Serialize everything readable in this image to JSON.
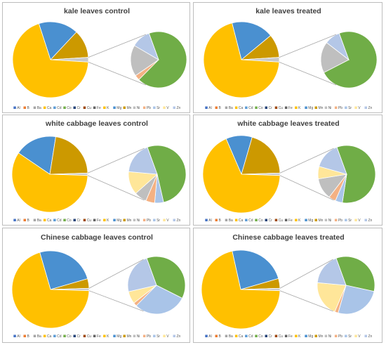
{
  "colors": {
    "Al": "#4472C4",
    "B": "#ED7D31",
    "Ba": "#A5A5A5",
    "Ca": "#FFC000",
    "Cd": "#5B9BD5",
    "Co": "#70AD47",
    "Cr": "#264478",
    "Cu": "#9E480E",
    "Fe": "#636363",
    "K": "#FFC000",
    "Mg": "#4A90D0",
    "Mn": "#CC9900",
    "Ni": "#BFBFBF",
    "Pb": "#F4B183",
    "Sr": "#A9C4E8",
    "V": "#FFE699",
    "Zn": "#B4C7E7"
  },
  "chart_data": [
    {
      "type": "pie",
      "title": "kale leaves control",
      "legend": [
        "Al",
        "B",
        "Ba",
        "Ca",
        "Cd",
        "Co",
        "Cr",
        "Cu",
        "Fe",
        "K",
        "Mg",
        "Mn",
        "Ni",
        "Pb",
        "Sr",
        "V",
        "Zn"
      ],
      "main_slices": [
        {
          "name": "Mg",
          "value": 17
        },
        {
          "name": "Mn",
          "value": 12
        },
        {
          "name": "other",
          "value": 2
        },
        {
          "name": "K",
          "value": 69
        }
      ],
      "secondary_slices": [
        {
          "name": "Co",
          "value": 68
        },
        {
          "name": "Pb",
          "value": 3
        },
        {
          "name": "Ni",
          "value": 18
        },
        {
          "name": "Zn",
          "value": 11
        }
      ]
    },
    {
      "type": "pie",
      "title": "kale leaves treated",
      "legend": [
        "Al",
        "B",
        "Ba",
        "Ca",
        "Cd",
        "Co",
        "Cr",
        "Cu",
        "Fe",
        "K",
        "Mg",
        "Mn",
        "Ni",
        "Pb",
        "Sr",
        "V",
        "Zn"
      ],
      "main_slices": [
        {
          "name": "Mg",
          "value": 18
        },
        {
          "name": "Mn",
          "value": 10
        },
        {
          "name": "other",
          "value": 2
        },
        {
          "name": "K",
          "value": 70
        }
      ],
      "secondary_slices": [
        {
          "name": "Co",
          "value": 73
        },
        {
          "name": "Ni",
          "value": 18
        },
        {
          "name": "Zn",
          "value": 9
        }
      ]
    },
    {
      "type": "pie",
      "title": "white cabbage leaves control",
      "legend": [
        "Al",
        "B",
        "Ba",
        "Ca",
        "Cd",
        "Co",
        "Cr",
        "Cu",
        "Fe",
        "K",
        "Mg",
        "Mn",
        "Ni",
        "Pb",
        "Sr",
        "V",
        "Zn"
      ],
      "main_slices": [
        {
          "name": "Mg",
          "value": 18
        },
        {
          "name": "Mn",
          "value": 22
        },
        {
          "name": "other",
          "value": 1
        },
        {
          "name": "K",
          "value": 59
        }
      ],
      "secondary_slices": [
        {
          "name": "Co",
          "value": 52
        },
        {
          "name": "Sr",
          "value": 5
        },
        {
          "name": "Pb",
          "value": 5
        },
        {
          "name": "Ni",
          "value": 7
        },
        {
          "name": "V",
          "value": 13
        },
        {
          "name": "Zn",
          "value": 18
        }
      ]
    },
    {
      "type": "pie",
      "title": "white cabbage leaves treated",
      "legend": [
        "Al",
        "B",
        "Ba",
        "Ca",
        "Cd",
        "Co",
        "Cr",
        "Cu",
        "Fe",
        "K",
        "Mg",
        "Mn",
        "Ni",
        "Pb",
        "Sr",
        "V",
        "Zn"
      ],
      "main_slices": [
        {
          "name": "Mg",
          "value": 11
        },
        {
          "name": "Mn",
          "value": 20
        },
        {
          "name": "other",
          "value": 1
        },
        {
          "name": "K",
          "value": 68
        }
      ],
      "secondary_slices": [
        {
          "name": "Co",
          "value": 58
        },
        {
          "name": "Sr",
          "value": 4
        },
        {
          "name": "Pb",
          "value": 4
        },
        {
          "name": "Ni",
          "value": 12
        },
        {
          "name": "V",
          "value": 7
        },
        {
          "name": "Zn",
          "value": 15
        }
      ]
    },
    {
      "type": "pie",
      "title": "Chinese cabbage leaves control",
      "legend": [
        "Al",
        "B",
        "Ba",
        "Ca",
        "Cd",
        "Co",
        "Cr",
        "Cu",
        "Fe",
        "K",
        "Mg",
        "Mn",
        "Ni",
        "Pb",
        "Sr",
        "V",
        "Zn"
      ],
      "main_slices": [
        {
          "name": "Mg",
          "value": 25
        },
        {
          "name": "Mn",
          "value": 4
        },
        {
          "name": "other",
          "value": 1
        },
        {
          "name": "K",
          "value": 70
        }
      ],
      "secondary_slices": [
        {
          "name": "Co",
          "value": 38
        },
        {
          "name": "Sr",
          "value": 30
        },
        {
          "name": "Pb",
          "value": 2
        },
        {
          "name": "V",
          "value": 7
        },
        {
          "name": "Zn",
          "value": 23
        }
      ]
    },
    {
      "type": "pie",
      "title": "Chinese cabbage leaves treated",
      "legend": [
        "Al",
        "B",
        "Ba",
        "Ca",
        "Cd",
        "Co",
        "Cr",
        "Cu",
        "Fe",
        "K",
        "Mg",
        "Mn",
        "Ni",
        "Pb",
        "Sr",
        "V",
        "Zn"
      ],
      "main_slices": [
        {
          "name": "Mg",
          "value": 24
        },
        {
          "name": "Mn",
          "value": 4
        },
        {
          "name": "other",
          "value": 1
        },
        {
          "name": "K",
          "value": 71
        }
      ],
      "secondary_slices": [
        {
          "name": "Co",
          "value": 34
        },
        {
          "name": "Sr",
          "value": 26
        },
        {
          "name": "Pb",
          "value": 2
        },
        {
          "name": "V",
          "value": 20
        },
        {
          "name": "Zn",
          "value": 18
        }
      ]
    }
  ]
}
